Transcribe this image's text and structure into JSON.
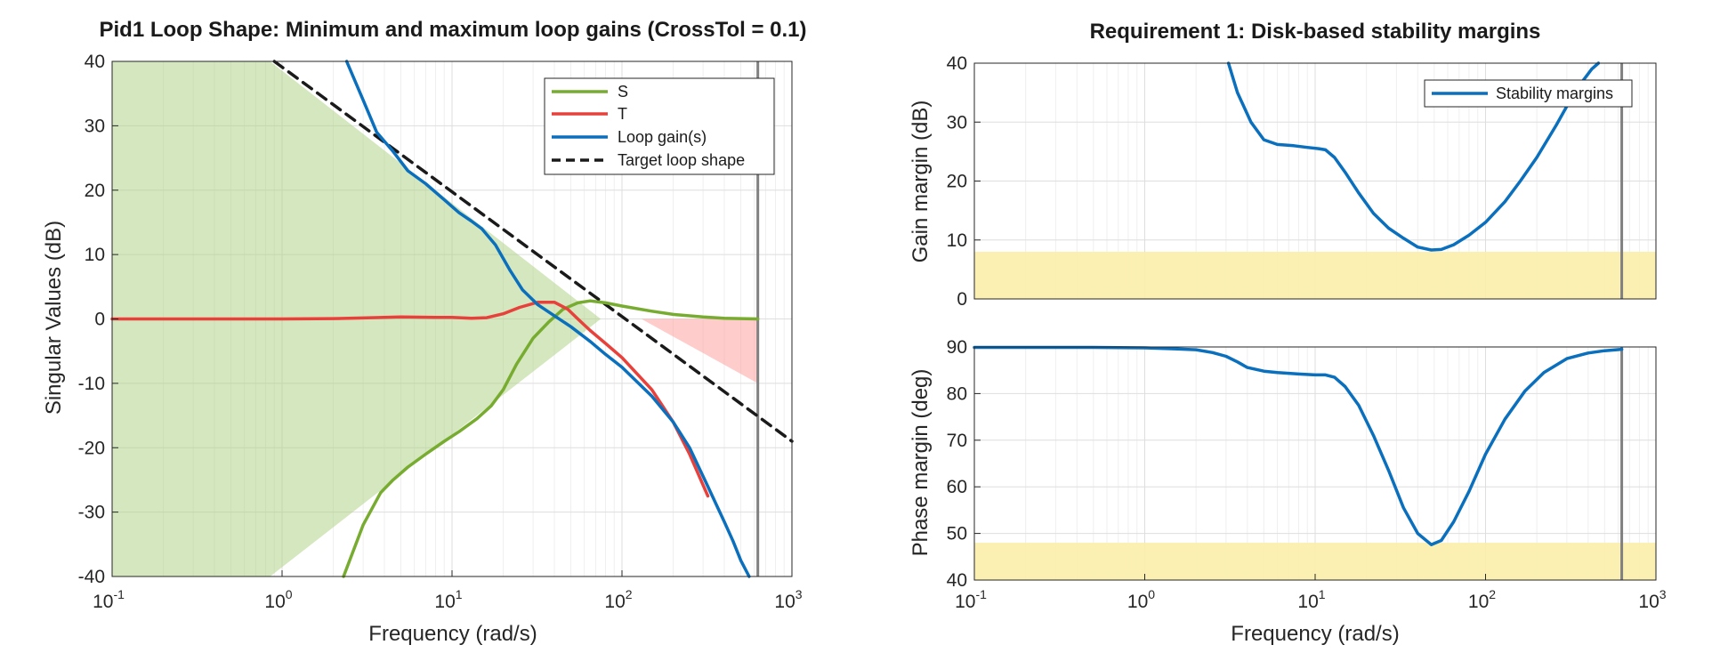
{
  "chart_data": [
    {
      "type": "line",
      "title": "Pid1 Loop Shape: Minimum and maximum loop gains (CrossTol = 0.1)",
      "xlabel": "Frequency (rad/s)",
      "ylabel": "Singular Values (dB)",
      "xscale": "log",
      "xlim": [
        0.1,
        1000
      ],
      "ylim": [
        -40,
        40
      ],
      "xticks": [
        {
          "base": "10",
          "exp": "-1"
        },
        {
          "base": "10",
          "exp": "0"
        },
        {
          "base": "10",
          "exp": "1"
        },
        {
          "base": "10",
          "exp": "2"
        },
        {
          "base": "10",
          "exp": "3"
        }
      ],
      "yticks": [
        "-40",
        "-30",
        "-20",
        "-10",
        "0",
        "10",
        "20",
        "30",
        "40"
      ],
      "grid": true,
      "legend_position": "top-right",
      "vertical_marker_x": 630,
      "shaded_regions": [
        {
          "kind": "min-gain bound",
          "color": "#a9cf7e",
          "x": [
            0.1,
            0.1,
            0.85,
            75,
            75,
            0.85,
            0.1
          ],
          "y": [
            -40,
            40,
            40,
            0,
            0,
            -40,
            -40
          ]
        },
        {
          "kind": "max-gain bound",
          "color": "#ff9a9a",
          "x": [
            130,
            630,
            630,
            130
          ],
          "y": [
            0,
            0,
            -10,
            0
          ]
        }
      ],
      "series": [
        {
          "name": "S",
          "color": "#77ac30",
          "style": "solid",
          "x": [
            2.3,
            3,
            3.8,
            4.5,
            5.5,
            7,
            9,
            11,
            14,
            17,
            20,
            24,
            30,
            37,
            45,
            55,
            65,
            80,
            100,
            150,
            200,
            300,
            400,
            500,
            630
          ],
          "y": [
            -40,
            -32,
            -27,
            -25,
            -23,
            -21,
            -19,
            -17.5,
            -15.5,
            -13.5,
            -11,
            -7,
            -3,
            -0.5,
            1.5,
            2.5,
            2.8,
            2.5,
            2,
            1.2,
            0.7,
            0.3,
            0.1,
            0.05,
            0
          ]
        },
        {
          "name": "T",
          "color": "#e8413c",
          "style": "solid",
          "x": [
            0.1,
            0.3,
            1,
            2,
            3,
            5,
            8,
            10,
            13,
            16,
            20,
            25,
            32,
            40,
            48,
            55,
            65,
            80,
            100,
            150,
            200,
            250,
            320
          ],
          "y": [
            0,
            0,
            0,
            0.05,
            0.15,
            0.3,
            0.25,
            0.25,
            0.1,
            0.2,
            0.8,
            1.8,
            2.6,
            2.6,
            1.5,
            0,
            -1.8,
            -3.8,
            -6,
            -11,
            -16,
            -21,
            -27.5
          ]
        },
        {
          "name": "Loop gain(s)",
          "color": "#0a6fbd",
          "style": "solid",
          "x": [
            2.4,
            3,
            3.6,
            4.5,
            5.5,
            7,
            9,
            11,
            13,
            15,
            18,
            22,
            26,
            32,
            40,
            50,
            65,
            80,
            100,
            150,
            200,
            250,
            320,
            400,
            450,
            500,
            560
          ],
          "y": [
            40,
            34,
            29,
            26,
            23,
            21,
            18.5,
            16.5,
            15.2,
            14,
            11.5,
            7.5,
            4.5,
            2.2,
            0.5,
            -1.2,
            -3.5,
            -5.5,
            -7.5,
            -12,
            -16,
            -20,
            -26,
            -31.5,
            -34.5,
            -37.5,
            -40
          ]
        },
        {
          "name": "Target loop shape",
          "color": "#1a1a1a",
          "style": "dashed",
          "x": [
            0.9,
            1000
          ],
          "y": [
            40,
            -19
          ]
        }
      ]
    },
    {
      "type": "line",
      "title": "Requirement 1: Disk-based stability margins",
      "xlabel": "Frequency (rad/s)",
      "xscale": "log",
      "xlim": [
        0.1,
        1000
      ],
      "xticks": [
        {
          "base": "10",
          "exp": "-1"
        },
        {
          "base": "10",
          "exp": "0"
        },
        {
          "base": "10",
          "exp": "1"
        },
        {
          "base": "10",
          "exp": "2"
        },
        {
          "base": "10",
          "exp": "3"
        }
      ],
      "grid": true,
      "vertical_marker_x": 630,
      "legend_position": "top-right",
      "subplots": [
        {
          "ylabel": "Gain margin (dB)",
          "ylim": [
            0,
            40
          ],
          "yticks": [
            "0",
            "10",
            "20",
            "30",
            "40"
          ],
          "shaded_regions": [
            {
              "kind": "requirement bound",
              "color": "#fbeeaa",
              "y": [
                0,
                8
              ]
            }
          ],
          "series": [
            {
              "name": "Stability margins",
              "color": "#0a6fbd",
              "x": [
                3.1,
                3.5,
                4.2,
                5,
                6,
                7.5,
                9,
                10.5,
                11.5,
                13,
                15,
                18,
                22,
                27,
                33,
                40,
                48,
                55,
                65,
                80,
                100,
                130,
                160,
                200,
                260,
                340,
                420,
                460
              ],
              "y": [
                40,
                35,
                30,
                27,
                26.2,
                26,
                25.7,
                25.5,
                25.3,
                24,
                21.5,
                18,
                14.5,
                12,
                10.3,
                8.8,
                8.3,
                8.4,
                9.2,
                10.8,
                13,
                16.5,
                20,
                24,
                29.5,
                35.5,
                39,
                40
              ]
            }
          ]
        },
        {
          "ylabel": "Phase margin (deg)",
          "ylim": [
            40,
            90
          ],
          "yticks": [
            "40",
            "50",
            "60",
            "70",
            "80",
            "90"
          ],
          "shaded_regions": [
            {
              "kind": "requirement bound",
              "color": "#fbeeaa",
              "y": [
                40,
                48
              ]
            }
          ],
          "series": [
            {
              "name": "Stability margins",
              "color": "#0a6fbd",
              "x": [
                0.1,
                0.5,
                1,
                1.5,
                2,
                2.5,
                3,
                3.5,
                4,
                5,
                6,
                8,
                10,
                11.5,
                13,
                15,
                18,
                22,
                27,
                33,
                40,
                48,
                55,
                65,
                80,
                100,
                130,
                170,
                220,
                300,
                400,
                500,
                630
              ],
              "y": [
                89.9,
                89.9,
                89.8,
                89.6,
                89.4,
                88.8,
                88,
                86.8,
                85.6,
                84.8,
                84.5,
                84.2,
                84,
                84,
                83.5,
                81.5,
                77.5,
                71,
                63.5,
                55.5,
                50,
                47.6,
                48.5,
                52.5,
                59,
                67,
                74.5,
                80.5,
                84.5,
                87.5,
                88.7,
                89.2,
                89.5
              ]
            }
          ]
        }
      ]
    }
  ]
}
